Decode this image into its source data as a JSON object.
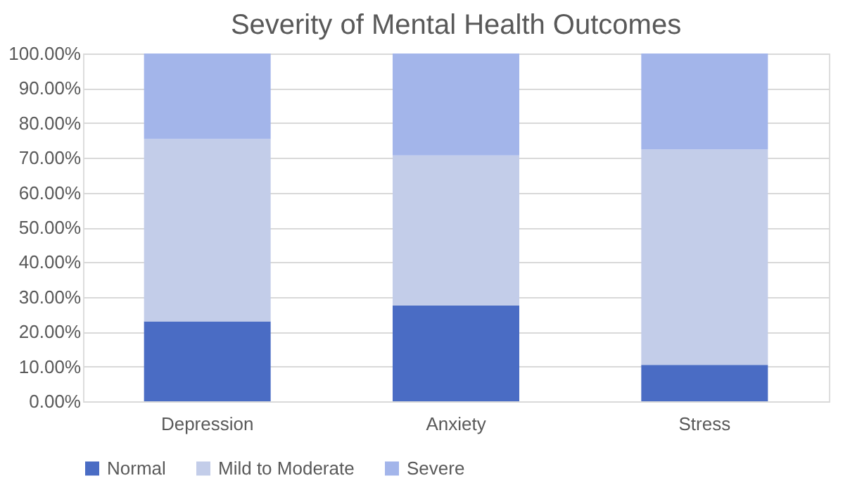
{
  "chart_data": {
    "type": "bar",
    "title": "Severity of Mental Health Outcomes",
    "stacked": true,
    "categories": [
      "Depression",
      "Anxiety",
      "Stress"
    ],
    "series": [
      {
        "name": "Normal",
        "color": "#4a6cc4",
        "values": [
          23.0,
          27.6,
          10.5
        ]
      },
      {
        "name": "Mild to Moderate",
        "color": "#c3cde9",
        "values": [
          52.4,
          43.1,
          61.9
        ]
      },
      {
        "name": "Severe",
        "color": "#a3b5ea",
        "values": [
          24.6,
          29.3,
          27.6
        ]
      }
    ],
    "ylim": [
      0,
      100
    ],
    "yticks": [
      {
        "value": 0,
        "label": "0.00%"
      },
      {
        "value": 10,
        "label": "10.00%"
      },
      {
        "value": 20,
        "label": "20.00%"
      },
      {
        "value": 30,
        "label": "30.00%"
      },
      {
        "value": 40,
        "label": "40.00%"
      },
      {
        "value": 50,
        "label": "50.00%"
      },
      {
        "value": 60,
        "label": "60.00%"
      },
      {
        "value": 70,
        "label": "70.00%"
      },
      {
        "value": 80,
        "label": "80.00%"
      },
      {
        "value": 90,
        "label": "90.00%"
      },
      {
        "value": 100,
        "label": "100.00%"
      }
    ],
    "grid": "y",
    "legend": "bottom"
  }
}
